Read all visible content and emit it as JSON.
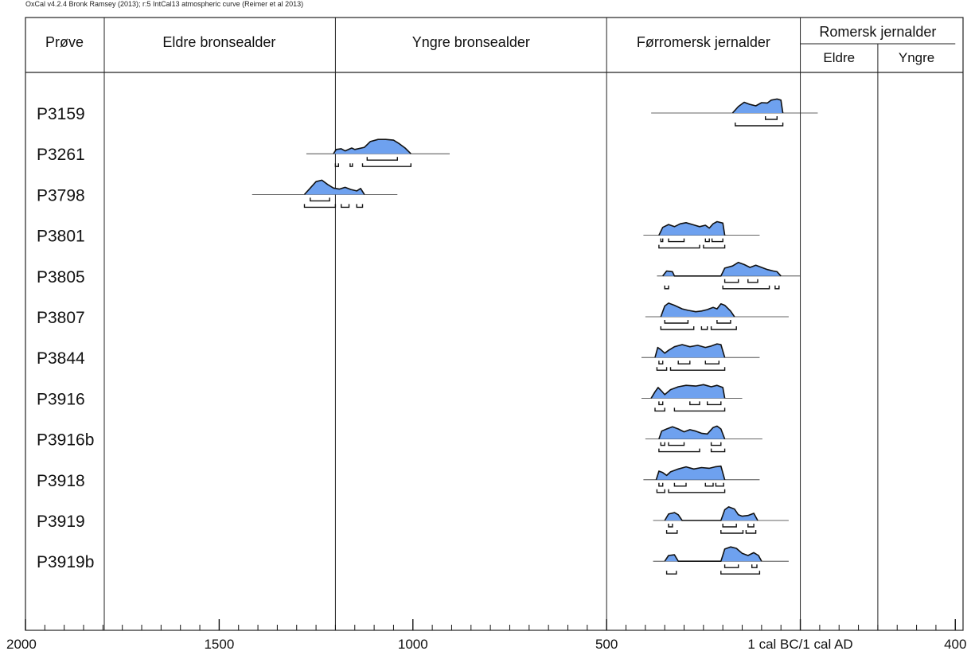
{
  "caption": "OxCal v4.2.4 Bronk Ramsey (2013); r:5 IntCal13 atmospheric curve (Reimer et al 2013)",
  "header": {
    "sample_col": "Prøve",
    "periods": [
      {
        "label": "Eldre bronsealder",
        "from": -1800,
        "to": -1200
      },
      {
        "label": "Yngre bronsealder",
        "from": -1200,
        "to": -500
      },
      {
        "label": "Førromersk jernalder",
        "from": -500,
        "to": 0
      },
      {
        "label": "Romersk jernalder",
        "from": 0,
        "to": 400,
        "sub": [
          {
            "label": "Eldre",
            "from": 0,
            "to": 200
          },
          {
            "label": "Yngre",
            "from": 200,
            "to": 400
          }
        ]
      }
    ]
  },
  "chart_data": {
    "type": "area",
    "x_unit": "calendar year (negative = cal BC)",
    "xlim": [
      -2000,
      420
    ],
    "x_ticks": [
      {
        "value": -2000,
        "label": "2000"
      },
      {
        "value": -1500,
        "label": "1500"
      },
      {
        "value": -1000,
        "label": "1000"
      },
      {
        "value": -500,
        "label": "500"
      },
      {
        "value": 0,
        "label": "1 cal BC/1 cal AD"
      },
      {
        "value": 400,
        "label": "400"
      }
    ],
    "minor_tick_step": 50,
    "fill_color": "#6ea1ef",
    "series": [
      {
        "name": "P3159",
        "range": [
          -385,
          45
        ],
        "curve": [
          [
            -175,
            0
          ],
          [
            -160,
            0.45
          ],
          [
            -145,
            0.75
          ],
          [
            -130,
            0.6
          ],
          [
            -115,
            0.5
          ],
          [
            -100,
            0.72
          ],
          [
            -85,
            0.7
          ],
          [
            -75,
            0.9
          ],
          [
            -60,
            0.98
          ],
          [
            -50,
            0.9
          ],
          [
            -45,
            0
          ]
        ],
        "hpd68": [
          [
            -90,
            -60
          ]
        ],
        "hpd95": [
          [
            -168,
            -45
          ]
        ]
      },
      {
        "name": "P3261",
        "range": [
          -1275,
          -905
        ],
        "curve": [
          [
            -1205,
            0
          ],
          [
            -1198,
            0.3
          ],
          [
            -1185,
            0.35
          ],
          [
            -1175,
            0.2
          ],
          [
            -1158,
            0.4
          ],
          [
            -1150,
            0.3
          ],
          [
            -1125,
            0.45
          ],
          [
            -1110,
            0.85
          ],
          [
            -1090,
            1
          ],
          [
            -1070,
            1
          ],
          [
            -1050,
            0.95
          ],
          [
            -1035,
            0.7
          ],
          [
            -1020,
            0.4
          ],
          [
            -1005,
            0
          ]
        ],
        "hpd68": [
          [
            -1118,
            -1040
          ]
        ],
        "hpd95": [
          [
            -1200,
            -1192
          ],
          [
            -1162,
            -1156
          ],
          [
            -1130,
            -1005
          ]
        ]
      },
      {
        "name": "P3798",
        "range": [
          -1415,
          -1040
        ],
        "curve": [
          [
            -1280,
            0
          ],
          [
            -1265,
            0.45
          ],
          [
            -1250,
            0.9
          ],
          [
            -1235,
            1
          ],
          [
            -1220,
            0.7
          ],
          [
            -1205,
            0.45
          ],
          [
            -1190,
            0.38
          ],
          [
            -1175,
            0.5
          ],
          [
            -1160,
            0.35
          ],
          [
            -1145,
            0.25
          ],
          [
            -1135,
            0.42
          ],
          [
            -1125,
            0
          ]
        ],
        "hpd68": [
          [
            -1265,
            -1215
          ]
        ],
        "hpd95": [
          [
            -1280,
            -1200
          ],
          [
            -1185,
            -1165
          ],
          [
            -1145,
            -1130
          ]
        ]
      },
      {
        "name": "P3801",
        "range": [
          -405,
          -105
        ],
        "curve": [
          [
            -365,
            0
          ],
          [
            -355,
            0.55
          ],
          [
            -340,
            0.75
          ],
          [
            -325,
            0.6
          ],
          [
            -310,
            0.8
          ],
          [
            -295,
            0.88
          ],
          [
            -275,
            0.72
          ],
          [
            -260,
            0.6
          ],
          [
            -245,
            0.7
          ],
          [
            -235,
            0.5
          ],
          [
            -225,
            0.8
          ],
          [
            -215,
            0.95
          ],
          [
            -200,
            0.85
          ],
          [
            -195,
            0
          ]
        ],
        "hpd68": [
          [
            -360,
            -355
          ],
          [
            -340,
            -300
          ],
          [
            -245,
            -235
          ],
          [
            -228,
            -200
          ]
        ],
        "hpd95": [
          [
            -365,
            -260
          ],
          [
            -250,
            -195
          ]
        ]
      },
      {
        "name": "P3805",
        "range": [
          -370,
          0
        ],
        "curve": [
          [
            -355,
            0
          ],
          [
            -345,
            0.35
          ],
          [
            -330,
            0.3
          ],
          [
            -325,
            0
          ],
          [
            -205,
            0
          ],
          [
            -195,
            0.55
          ],
          [
            -175,
            0.7
          ],
          [
            -160,
            0.95
          ],
          [
            -145,
            0.8
          ],
          [
            -130,
            0.6
          ],
          [
            -115,
            0.75
          ],
          [
            -100,
            0.6
          ],
          [
            -85,
            0.45
          ],
          [
            -70,
            0.35
          ],
          [
            -60,
            0.3
          ],
          [
            -50,
            0
          ]
        ],
        "hpd68": [
          [
            -195,
            -160
          ],
          [
            -135,
            -110
          ]
        ],
        "hpd95": [
          [
            -350,
            -340
          ],
          [
            -200,
            -80
          ],
          [
            -65,
            -55
          ]
        ]
      },
      {
        "name": "P3807",
        "range": [
          -400,
          -30
        ],
        "curve": [
          [
            -360,
            0
          ],
          [
            -350,
            0.75
          ],
          [
            -340,
            0.95
          ],
          [
            -325,
            0.8
          ],
          [
            -305,
            0.55
          ],
          [
            -290,
            0.45
          ],
          [
            -270,
            0.35
          ],
          [
            -255,
            0.4
          ],
          [
            -240,
            0.5
          ],
          [
            -225,
            0.65
          ],
          [
            -215,
            0.55
          ],
          [
            -205,
            0.9
          ],
          [
            -195,
            0.8
          ],
          [
            -180,
            0.4
          ],
          [
            -170,
            0
          ]
        ],
        "hpd68": [
          [
            -350,
            -290
          ],
          [
            -215,
            -180
          ]
        ],
        "hpd95": [
          [
            -360,
            -275
          ],
          [
            -255,
            -240
          ],
          [
            -230,
            -165
          ]
        ]
      },
      {
        "name": "P3844",
        "range": [
          -410,
          -105
        ],
        "curve": [
          [
            -375,
            0
          ],
          [
            -368,
            0.7
          ],
          [
            -360,
            0.55
          ],
          [
            -350,
            0.3
          ],
          [
            -340,
            0.5
          ],
          [
            -325,
            0.75
          ],
          [
            -305,
            0.9
          ],
          [
            -285,
            0.75
          ],
          [
            -265,
            0.85
          ],
          [
            -245,
            0.7
          ],
          [
            -230,
            0.8
          ],
          [
            -215,
            0.95
          ],
          [
            -205,
            0.9
          ],
          [
            -195,
            0
          ]
        ],
        "hpd68": [
          [
            -365,
            -355
          ],
          [
            -315,
            -285
          ],
          [
            -245,
            -210
          ]
        ],
        "hpd95": [
          [
            -370,
            -345
          ],
          [
            -335,
            -195
          ]
        ]
      },
      {
        "name": "P3916",
        "range": [
          -410,
          -150
        ],
        "curve": [
          [
            -385,
            0
          ],
          [
            -375,
            0.45
          ],
          [
            -367,
            0.75
          ],
          [
            -358,
            0.5
          ],
          [
            -350,
            0.25
          ],
          [
            -335,
            0.6
          ],
          [
            -315,
            0.8
          ],
          [
            -295,
            0.9
          ],
          [
            -270,
            0.85
          ],
          [
            -250,
            0.95
          ],
          [
            -230,
            0.8
          ],
          [
            -215,
            0.9
          ],
          [
            -200,
            0.75
          ],
          [
            -195,
            0
          ]
        ],
        "hpd68": [
          [
            -365,
            -355
          ],
          [
            -285,
            -260
          ],
          [
            -240,
            -205
          ]
        ],
        "hpd95": [
          [
            -375,
            -350
          ],
          [
            -325,
            -195
          ]
        ]
      },
      {
        "name": "P3916b",
        "range": [
          -400,
          -98
        ],
        "curve": [
          [
            -365,
            0
          ],
          [
            -358,
            0.55
          ],
          [
            -345,
            0.7
          ],
          [
            -330,
            0.85
          ],
          [
            -315,
            0.7
          ],
          [
            -300,
            0.5
          ],
          [
            -285,
            0.65
          ],
          [
            -270,
            0.55
          ],
          [
            -255,
            0.4
          ],
          [
            -240,
            0.35
          ],
          [
            -225,
            0.8
          ],
          [
            -215,
            0.9
          ],
          [
            -205,
            0.7
          ],
          [
            -195,
            0
          ]
        ],
        "hpd68": [
          [
            -360,
            -350
          ],
          [
            -340,
            -300
          ],
          [
            -230,
            -205
          ]
        ],
        "hpd95": [
          [
            -365,
            -260
          ],
          [
            -230,
            -195
          ]
        ]
      },
      {
        "name": "P3918",
        "range": [
          -405,
          -105
        ],
        "curve": [
          [
            -372,
            0
          ],
          [
            -365,
            0.6
          ],
          [
            -355,
            0.5
          ],
          [
            -345,
            0.3
          ],
          [
            -335,
            0.55
          ],
          [
            -315,
            0.75
          ],
          [
            -295,
            0.9
          ],
          [
            -275,
            0.75
          ],
          [
            -255,
            0.85
          ],
          [
            -235,
            0.8
          ],
          [
            -220,
            0.9
          ],
          [
            -205,
            0.95
          ],
          [
            -195,
            0
          ]
        ],
        "hpd68": [
          [
            -365,
            -355
          ],
          [
            -325,
            -295
          ],
          [
            -245,
            -225
          ],
          [
            -218,
            -198
          ]
        ],
        "hpd95": [
          [
            -370,
            -350
          ],
          [
            -340,
            -195
          ]
        ]
      },
      {
        "name": "P3919",
        "range": [
          -380,
          -30
        ],
        "curve": [
          [
            -350,
            0
          ],
          [
            -340,
            0.45
          ],
          [
            -325,
            0.55
          ],
          [
            -315,
            0.4
          ],
          [
            -305,
            0
          ],
          [
            -205,
            0
          ],
          [
            -195,
            0.75
          ],
          [
            -185,
            0.95
          ],
          [
            -170,
            0.8
          ],
          [
            -160,
            0.4
          ],
          [
            -150,
            0.3
          ],
          [
            -135,
            0.35
          ],
          [
            -120,
            0.5
          ],
          [
            -110,
            0
          ]
        ],
        "hpd68": [
          [
            -340,
            -330
          ],
          [
            -200,
            -165
          ],
          [
            -135,
            -120
          ]
        ],
        "hpd95": [
          [
            -345,
            -318
          ],
          [
            -205,
            -148
          ],
          [
            -140,
            -115
          ]
        ]
      },
      {
        "name": "P3919b",
        "range": [
          -380,
          -30
        ],
        "curve": [
          [
            -350,
            0
          ],
          [
            -340,
            0.4
          ],
          [
            -325,
            0.45
          ],
          [
            -315,
            0
          ],
          [
            -205,
            0
          ],
          [
            -195,
            0.85
          ],
          [
            -180,
            1
          ],
          [
            -165,
            0.9
          ],
          [
            -150,
            0.55
          ],
          [
            -135,
            0.4
          ],
          [
            -120,
            0.6
          ],
          [
            -108,
            0.4
          ],
          [
            -100,
            0
          ]
        ],
        "hpd68": [
          [
            -195,
            -160
          ],
          [
            -125,
            -112
          ]
        ],
        "hpd95": [
          [
            -345,
            -320
          ],
          [
            -205,
            -105
          ]
        ]
      }
    ]
  }
}
